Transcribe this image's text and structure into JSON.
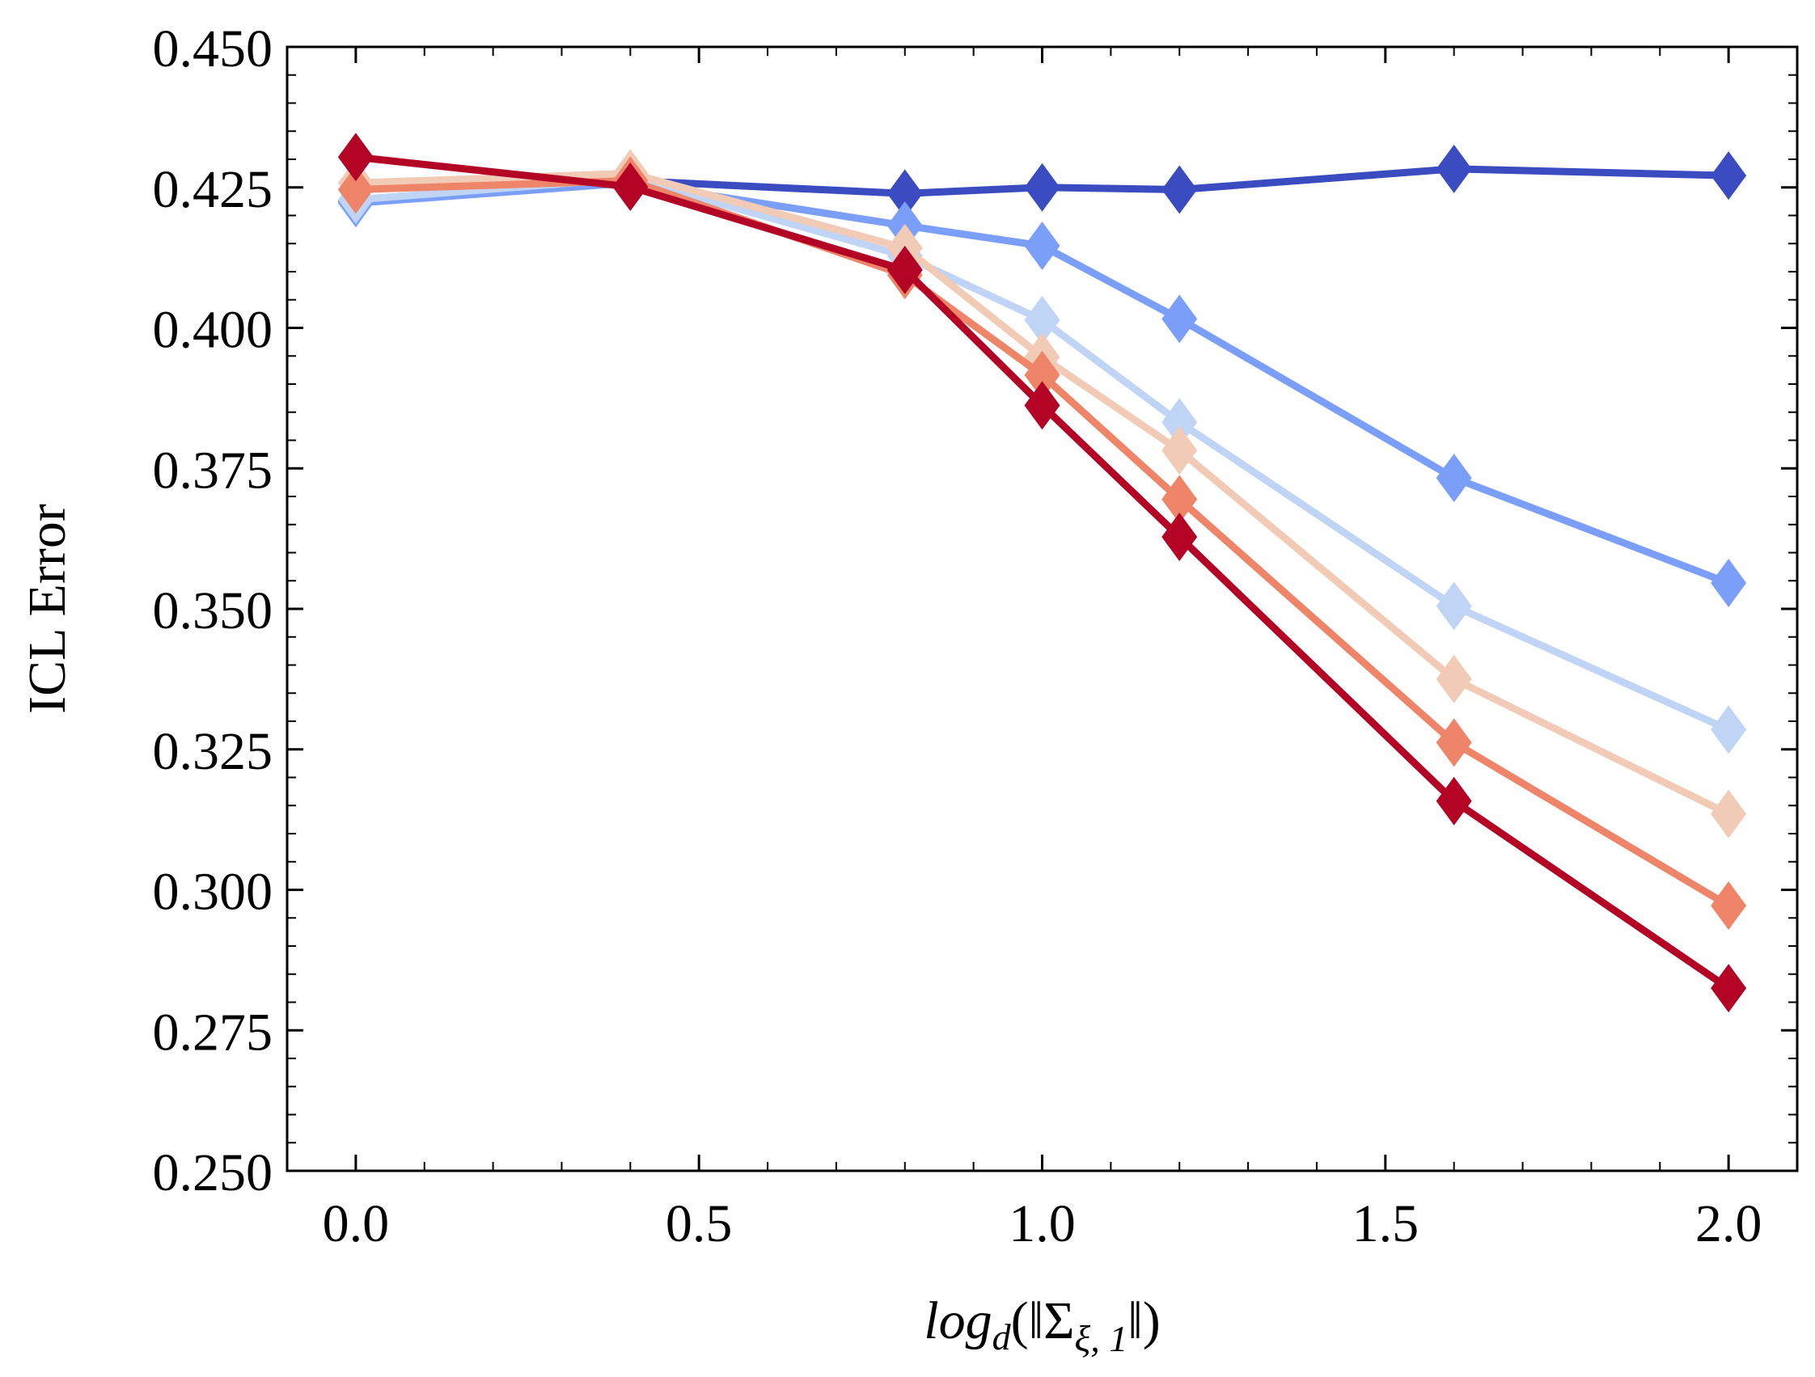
{
  "chart_data": {
    "type": "line",
    "title": "",
    "xlabel": {
      "prefix": "log",
      "sub_d": "d",
      "open": "(‖Σ",
      "sub_xi": "ξ, 1",
      "close": "‖)"
    },
    "ylabel": "ICL Error",
    "xlim": [
      -0.1,
      2.1
    ],
    "ylim": [
      0.25,
      0.45
    ],
    "xticks": [
      0.0,
      0.5,
      1.0,
      1.5,
      2.0
    ],
    "xtick_labels": [
      "0.0",
      "0.5",
      "1.0",
      "1.5",
      "2.0"
    ],
    "yticks": [
      0.25,
      0.275,
      0.3,
      0.325,
      0.35,
      0.375,
      0.4,
      0.425,
      0.45
    ],
    "ytick_labels": [
      "0.250",
      "0.275",
      "0.300",
      "0.325",
      "0.350",
      "0.375",
      "0.400",
      "0.425",
      "0.450"
    ],
    "x": [
      0.0,
      0.4,
      0.8,
      1.0,
      1.2,
      1.6,
      2.0
    ],
    "grid": false,
    "marker": "diamond",
    "series": [
      {
        "name": "series-1",
        "color": "#3b4cc0",
        "values": [
          0.4225,
          0.4262,
          0.4239,
          0.425,
          0.4246,
          0.4283,
          0.4271
        ]
      },
      {
        "name": "series-2",
        "color": "#7b9ff9",
        "values": [
          0.4222,
          0.4258,
          0.4182,
          0.4146,
          0.4016,
          0.3733,
          0.3546
        ]
      },
      {
        "name": "series-3",
        "color": "#c0d4f5",
        "values": [
          0.4228,
          0.4266,
          0.4128,
          0.4014,
          0.3832,
          0.3505,
          0.3285
        ]
      },
      {
        "name": "series-4",
        "color": "#f2cbb7",
        "values": [
          0.4258,
          0.4275,
          0.4142,
          0.3948,
          0.3782,
          0.3375,
          0.3135
        ]
      },
      {
        "name": "series-5",
        "color": "#ee8468",
        "values": [
          0.4246,
          0.4262,
          0.4094,
          0.3916,
          0.3695,
          0.3262,
          0.2972
        ]
      },
      {
        "name": "series-6",
        "color": "#b40426",
        "values": [
          0.4304,
          0.4251,
          0.4103,
          0.3862,
          0.3628,
          0.3158,
          0.2825
        ]
      }
    ]
  }
}
